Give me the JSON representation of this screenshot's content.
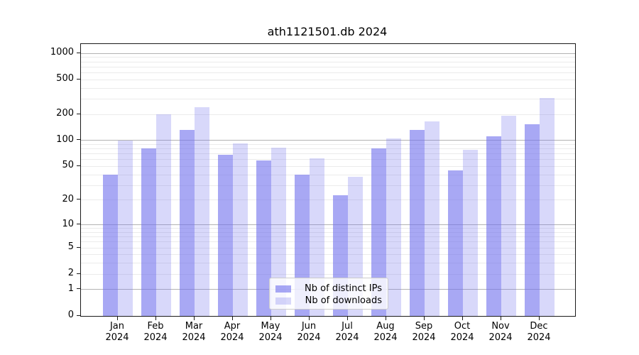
{
  "title": "ath1121501.db 2024",
  "chart_data": {
    "type": "bar",
    "title": "ath1121501.db 2024",
    "scale": "log10(1+v)",
    "categories": [
      "Jan",
      "Feb",
      "Mar",
      "Apr",
      "May",
      "Jun",
      "Jul",
      "Aug",
      "Sep",
      "Oct",
      "Nov",
      "Dec"
    ],
    "category_year": "2024",
    "series": [
      {
        "name": "Nb of distinct IPs",
        "color": "rgba(114,114,237,0.62)",
        "values": [
          40,
          81,
          132,
          68,
          59,
          40,
          23,
          81,
          132,
          45,
          112,
          154
        ]
      },
      {
        "name": "Nb of downloads",
        "color": "rgba(114,114,237,0.28)",
        "values": [
          100,
          200,
          240,
          92,
          83,
          62,
          38,
          106,
          166,
          78,
          192,
          307
        ]
      }
    ],
    "ylabel": "",
    "xlabel": "",
    "yticks": [
      0,
      1,
      2,
      5,
      10,
      20,
      50,
      100,
      200,
      500,
      1000
    ],
    "ylim": [
      0,
      1277
    ],
    "grid": "both",
    "legend_position": "lower center",
    "colors": {
      "bar_distinct_ips": "rgba(114,114,237,0.62)",
      "bar_downloads": "rgba(114,114,237,0.28)",
      "major_grid": "#b3b3b3",
      "minor_grid": "#ebebeb",
      "axis": "#1a1a1a",
      "background": "#ffffff"
    }
  }
}
